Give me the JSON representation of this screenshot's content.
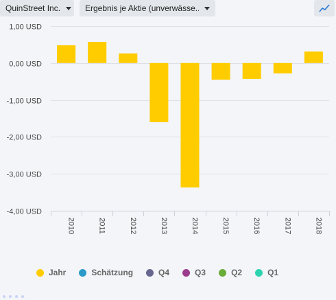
{
  "toolbar": {
    "company": "QuinStreet Inc.",
    "metric": "Ergebnis je Aktie (unverwässe..."
  },
  "icons": {
    "chart_type": "line-chart-icon"
  },
  "colors": {
    "bar": "#ffcc00",
    "grid": "#dde1e6",
    "axis_text": "#444444"
  },
  "chart_data": {
    "type": "bar",
    "categories": [
      "2010",
      "2011",
      "2012",
      "2013",
      "2014",
      "2015",
      "2016",
      "2017",
      "2018"
    ],
    "series": [
      {
        "name": "Jahr",
        "values": [
          0.48,
          0.57,
          0.26,
          -1.6,
          -3.37,
          -0.45,
          -0.43,
          -0.28,
          0.31
        ]
      }
    ],
    "yticks": [
      1,
      0,
      -1,
      -2,
      -3,
      -4
    ],
    "ytick_labels": [
      "1,00 USD",
      "0,00 USD",
      "-1,00 USD",
      "-2,00 USD",
      "-3,00 USD",
      "-4,00 USD"
    ],
    "ylim": [
      -4,
      1
    ],
    "grid": true,
    "legend_position": "bottom"
  },
  "legend": [
    {
      "label": "Jahr",
      "color": "#ffcc00"
    },
    {
      "label": "Schätzung",
      "color": "#2b9ac9"
    },
    {
      "label": "Q4",
      "color": "#66668f"
    },
    {
      "label": "Q3",
      "color": "#9b3b8c"
    },
    {
      "label": "Q2",
      "color": "#6aad3a"
    },
    {
      "label": "Q1",
      "color": "#2ed3b0"
    }
  ]
}
